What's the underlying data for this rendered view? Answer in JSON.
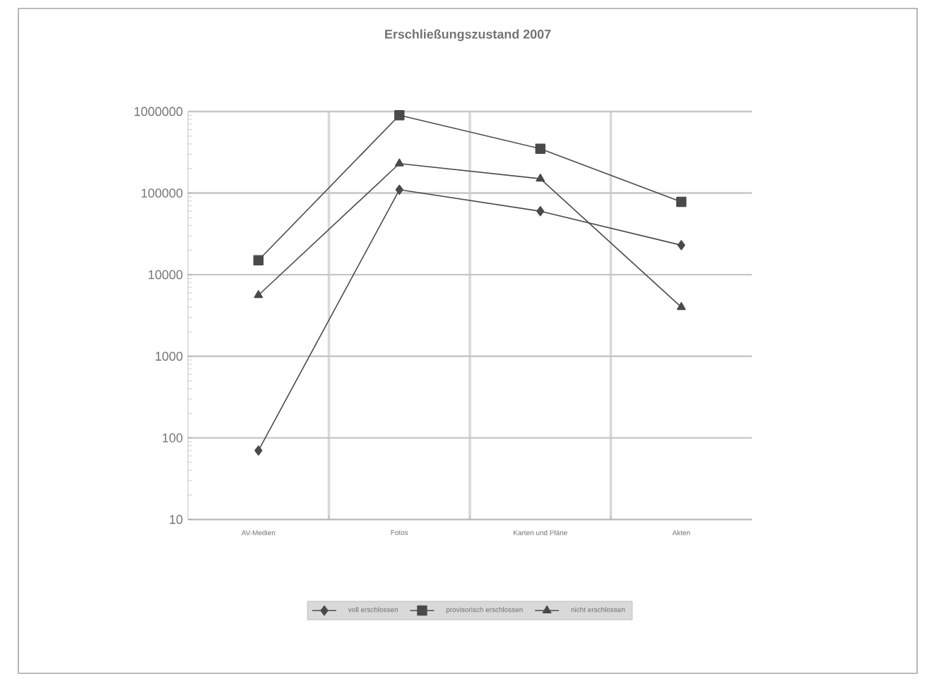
{
  "chart_data": {
    "type": "line",
    "title": "Erschließungszustand 2007",
    "categories": [
      "AV-Medien",
      "Fotos",
      "Karten und Pläne",
      "Akten"
    ],
    "series": [
      {
        "name": "voll erschlossen",
        "color": "#4a4a4a",
        "marker": "diamond",
        "values": [
          70,
          110000,
          60000,
          23000
        ]
      },
      {
        "name": "provisorisch erschlossen",
        "color": "#4a4a4a",
        "marker": "square",
        "values": [
          15000,
          900000,
          350000,
          78000
        ]
      },
      {
        "name": "nicht erschlossen",
        "color": "#4a4a4a",
        "marker": "triangle",
        "values": [
          5600,
          230000,
          150000,
          4000
        ]
      }
    ],
    "log": "y",
    "ylim": [
      10,
      1000000
    ],
    "yticks": [
      10,
      100,
      1000,
      10000,
      100000,
      1000000
    ],
    "grid": true,
    "legend": "bottom",
    "line_style": "solid"
  }
}
